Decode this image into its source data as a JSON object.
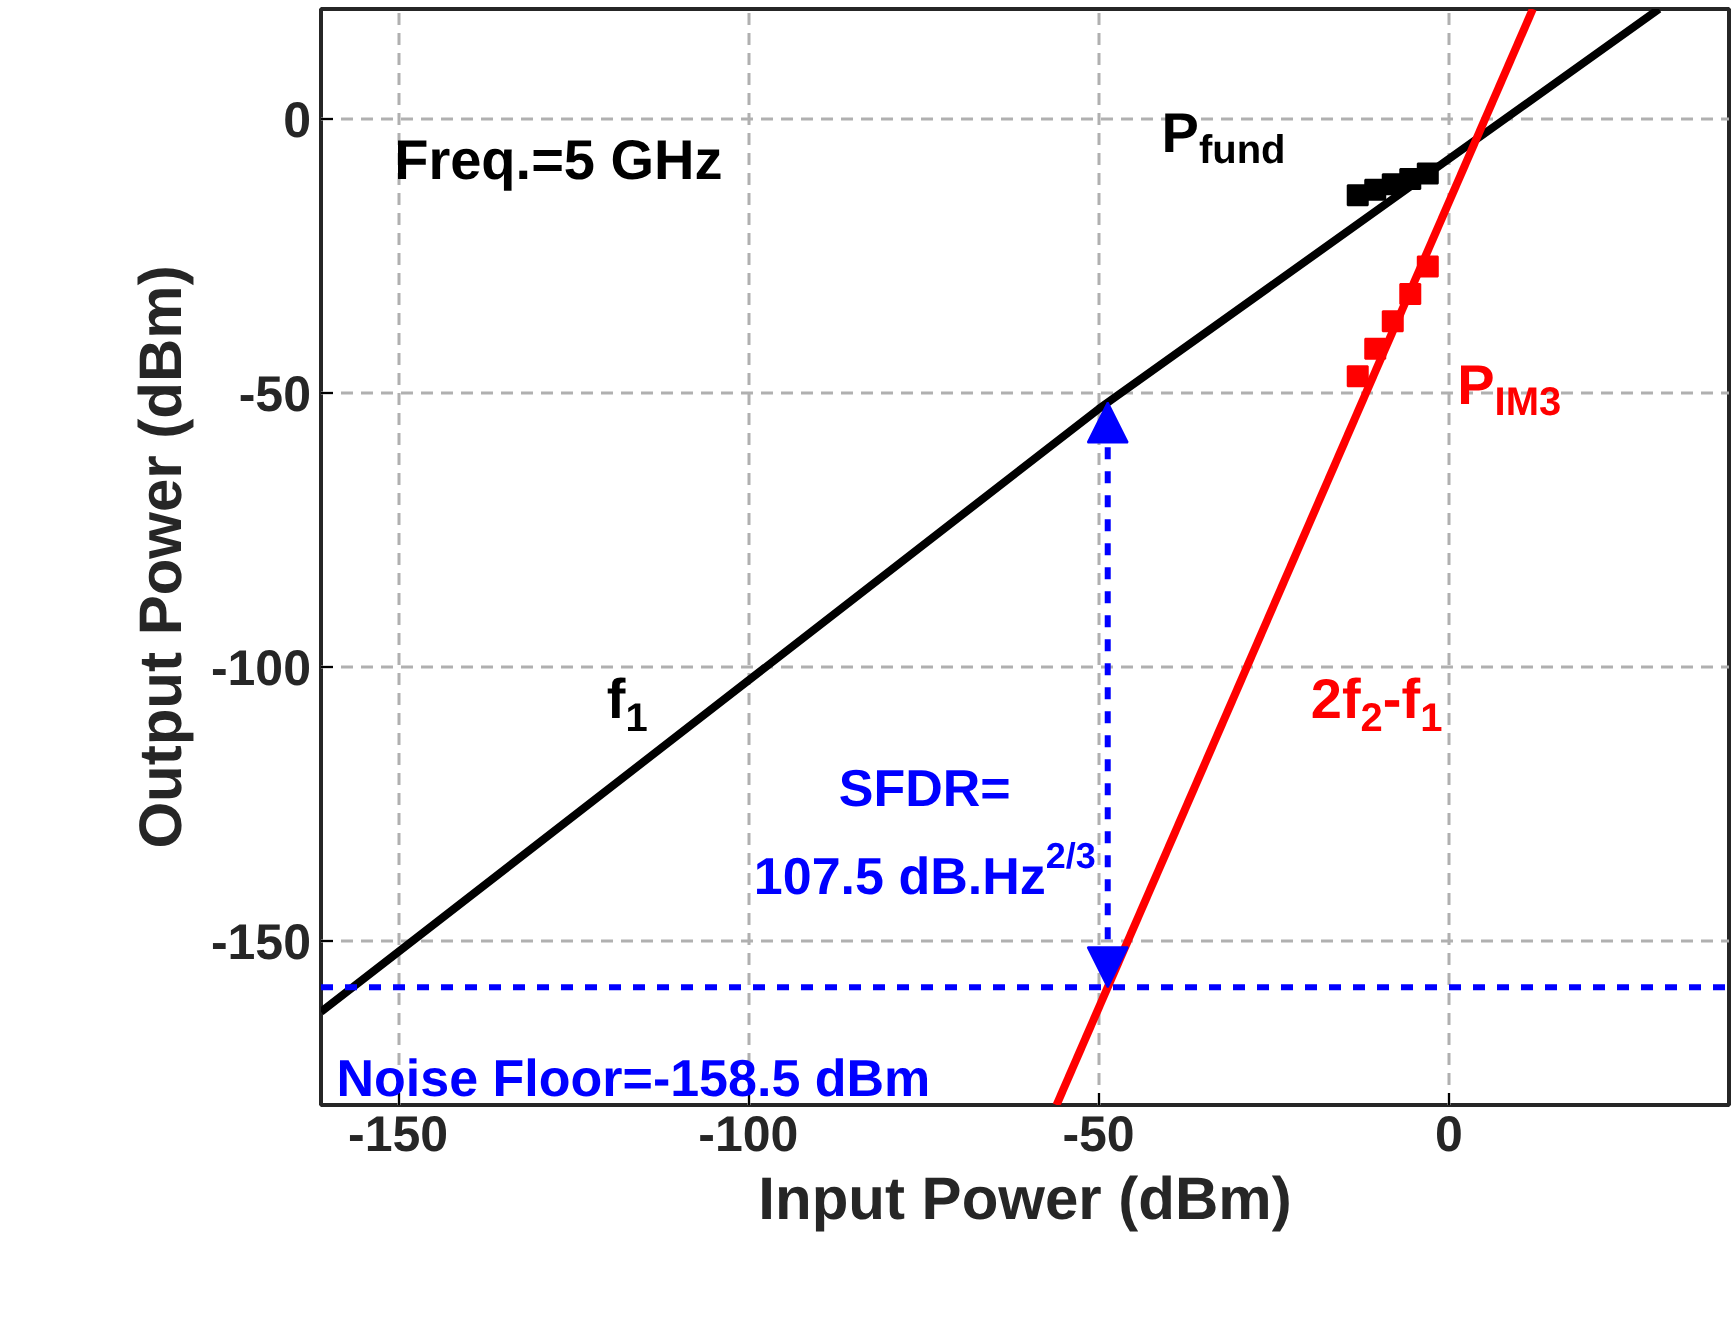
{
  "chart_data": {
    "type": "line",
    "xlabel": "Input Power (dBm)",
    "ylabel": "Output Power (dBm)",
    "xlim": [
      -161,
      40
    ],
    "ylim": [
      -180,
      20
    ],
    "xticks": [
      -150,
      -100,
      -50,
      0
    ],
    "yticks": [
      -150,
      -100,
      -50,
      0
    ],
    "grid": true,
    "legend": false,
    "series": [
      {
        "name": "f$_{1}$",
        "color": "#000000",
        "x": [
          -161,
          -50,
          30
        ],
        "values": [
          -163,
          -53,
          20
        ]
      },
      {
        "name": "2f$_{2}$-f$_{1}$",
        "color": "#ff0000",
        "x": [
          -56,
          12
        ],
        "values": [
          -180,
          20
        ]
      },
      {
        "name": "P$_{fund}$",
        "type": "scatter",
        "marker": "square",
        "color": "#000000",
        "x": [
          -13,
          -10.5,
          -8,
          -5.5,
          -3
        ],
        "values": [
          -14,
          -13,
          -12,
          -11,
          -10
        ]
      },
      {
        "name": "P$_{IM3}$",
        "type": "scatter",
        "marker": "square",
        "color": "#ff0000",
        "x": [
          -13,
          -10.5,
          -8,
          -5.5,
          -3
        ],
        "values": [
          -47,
          -42,
          -37,
          -32,
          -27
        ]
      }
    ],
    "ref_lines": [
      {
        "axis": "y",
        "value": -158.5,
        "label": "Noise Floor=-158.5 dBm",
        "color": "#0000ff",
        "line_style": "dashed"
      }
    ],
    "annotations": [
      "Freq.=5 GHz",
      "SFDR=\n107.5 dB.Hz$^{2/3}$"
    ]
  }
}
